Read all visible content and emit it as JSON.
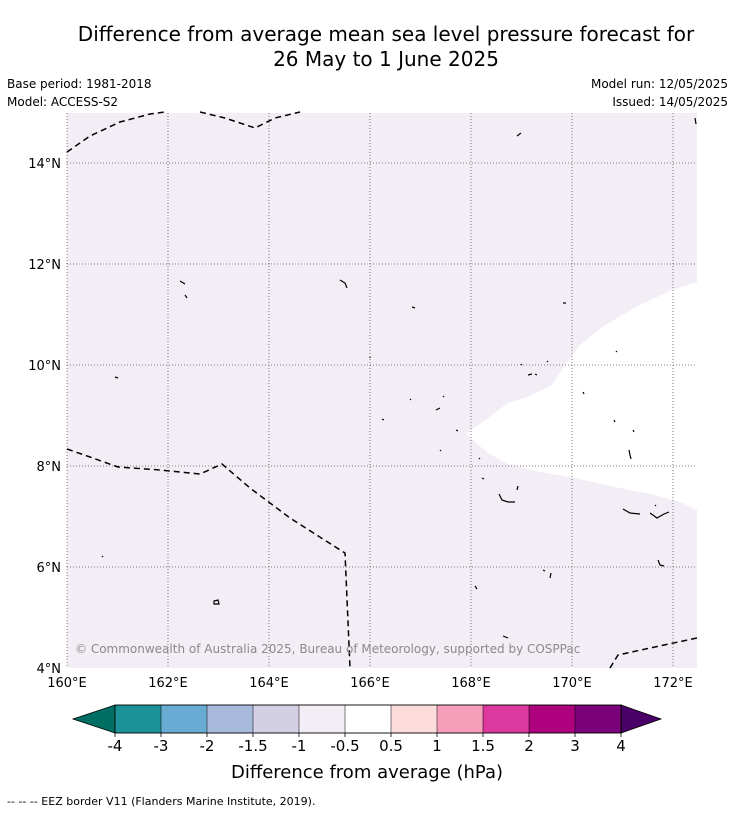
{
  "header": {
    "title_line1": "Difference from average mean sea level pressure forecast for",
    "title_line2": "26 May to 1 June 2025",
    "base_period": "Base period: 1981-2018",
    "model": "Model: ACCESS-S2",
    "model_run": "Model run: 12/05/2025",
    "issued": "Issued: 14/05/2025"
  },
  "map": {
    "lat_labels": [
      "14°N",
      "12°N",
      "10°N",
      "8°N",
      "6°N",
      "4°N"
    ],
    "lon_labels": [
      "160°E",
      "162°E",
      "164°E",
      "166°E",
      "168°E",
      "170°E",
      "172°E"
    ],
    "copyright": "© Commonwealth of Australia 2025, Bureau of Meteorology, supported by COSPPac",
    "background_fill_color": "#f3edf5",
    "neutral_fill_color": "#ffffff"
  },
  "colorbar": {
    "title": "Difference from average (hPa)",
    "ticks": [
      "-4",
      "-3",
      "-2",
      "-1.5",
      "-1",
      "-0.5",
      "0.5",
      "1",
      "1.5",
      "2",
      "3",
      "4"
    ],
    "colors": [
      "#006e63",
      "#1b9298",
      "#69acd3",
      "#a7badb",
      "#d3d0e5",
      "#f3edf5",
      "#ffffff",
      "#fddcdc",
      "#f69eba",
      "#dd37a0",
      "#ae017e",
      "#7a017a",
      "#4a0068"
    ]
  },
  "footer": {
    "legend": "--  --  -- EEZ border V11 (Flanders Marine Institute, 2019)."
  }
}
